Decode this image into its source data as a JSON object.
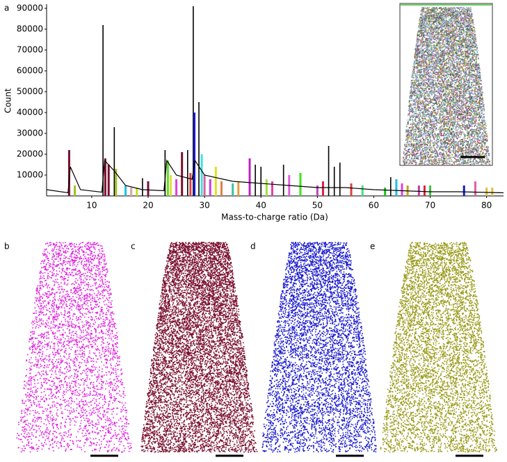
{
  "chart_data": {
    "type": "spectrum",
    "ylabel": "Count",
    "xlabel": "Mass-to-charge ratio (Da)",
    "xlim": [
      2,
      83
    ],
    "xticks": [
      10,
      20,
      30,
      40,
      50,
      60,
      70,
      80
    ],
    "ylim": [
      0,
      92000
    ],
    "yticks": [
      10000,
      20000,
      30000,
      40000,
      50000,
      60000,
      70000,
      80000,
      90000
    ],
    "x": [
      6,
      7,
      12,
      12.4,
      13,
      14,
      14.3,
      16,
      17,
      18,
      19,
      20,
      23,
      23.5,
      24,
      25,
      26,
      27,
      27.5,
      28,
      28.2,
      29,
      29.5,
      30,
      31,
      32,
      33,
      35,
      36,
      38,
      39,
      40,
      41,
      42,
      44,
      45,
      47,
      50,
      51,
      52,
      53,
      54,
      56,
      58,
      62,
      63,
      64,
      65,
      66,
      68,
      69,
      70,
      76,
      78,
      80,
      81
    ],
    "values": [
      22000,
      5000,
      82000,
      18000,
      15000,
      33000,
      13000,
      5000,
      4000,
      4000,
      8500,
      7000,
      22000,
      17000,
      10000,
      8000,
      21000,
      22000,
      11000,
      91000,
      40000,
      45000,
      20000,
      10000,
      8000,
      14000,
      7000,
      6000,
      7000,
      18000,
      15000,
      14000,
      8000,
      7000,
      15000,
      10000,
      11000,
      5000,
      7000,
      24000,
      14000,
      16000,
      6000,
      5000,
      4000,
      9000,
      8000,
      6000,
      5000,
      5000,
      5000,
      5000,
      5000,
      7000,
      4000,
      4000
    ],
    "colors": [
      "#7a0f2e",
      "#a0c020",
      "#000000",
      "#7a0f2e",
      "#7a0f2e",
      "#000000",
      "#a0c020",
      "#20c0e0",
      "#e0a0a0",
      "#c0e020",
      "#000000",
      "#7a0f2e",
      "#000000",
      "#60e020",
      "#e0e040",
      "#e040e0",
      "#7a0f2e",
      "#000000",
      "#e04040",
      "#000000",
      "#1a1acc",
      "#000000",
      "#40e0e0",
      "#e060a0",
      "#c040e0",
      "#e0e020",
      "#e08040",
      "#40c0a0",
      "#e0a040",
      "#c020c0",
      "#000000",
      "#000000",
      "#a0e040",
      "#e040a0",
      "#000000",
      "#e060e0",
      "#40e020",
      "#c040c0",
      "#e02040",
      "#000000",
      "#000000",
      "#000000",
      "#e04040",
      "#40e080",
      "#20c020",
      "#000000",
      "#20c0e0",
      "#e040e0",
      "#c0a020",
      "#c040a0",
      "#e02040",
      "#40c040",
      "#1a1acc",
      "#e060a0",
      "#e0c040",
      "#e0c040"
    ],
    "baseline": {
      "x": [
        2,
        5.8,
        6.2,
        8,
        11.8,
        12.3,
        14,
        16,
        19,
        22.8,
        23.3,
        25,
        27.8,
        28.3,
        30,
        35,
        40,
        45,
        50,
        55,
        60,
        65,
        70,
        75,
        83
      ],
      "values": [
        3000,
        1500,
        14000,
        3000,
        1800,
        17000,
        12000,
        5000,
        3000,
        2500,
        17000,
        10000,
        8000,
        17000,
        10000,
        7000,
        6000,
        5000,
        4000,
        4000,
        3000,
        2500,
        2000,
        2000,
        1500
      ]
    }
  },
  "panel_labels": [
    "a",
    "b",
    "c",
    "d",
    "e"
  ]
}
